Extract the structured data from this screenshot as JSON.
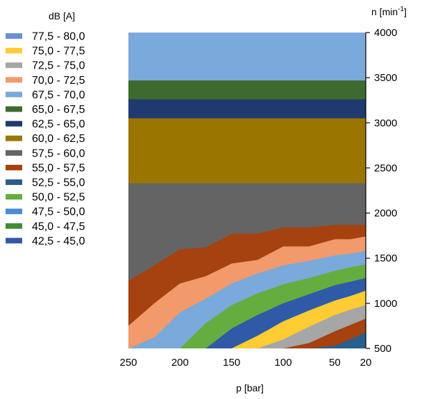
{
  "chart_data": {
    "type": "area",
    "legend_title": "dB [A]",
    "xlabel": "p [bar]",
    "ylabel": "n [min",
    "ylabel_sup": "-1",
    "ylabel_close": "]",
    "x_ticks": [
      "250",
      "200",
      "150",
      "100",
      "50",
      "20"
    ],
    "y_ticks": [
      "4000",
      "3500",
      "3000",
      "2500",
      "2000",
      "1500",
      "1000",
      "500"
    ],
    "xlim": [
      250,
      20
    ],
    "ylim": [
      500,
      4000
    ],
    "y_axis_position": "right",
    "legend_position": "left",
    "grid": false,
    "legend": [
      {
        "label": "77,5 - 80,0",
        "color": "#6b8fd6"
      },
      {
        "label": "75,0 - 77,5",
        "color": "#ffcc33"
      },
      {
        "label": "72,5 - 75,0",
        "color": "#a6a6a6"
      },
      {
        "label": "70,0 - 72,5",
        "color": "#f29a6b"
      },
      {
        "label": "67,5 - 70,0",
        "color": "#7aa9dc"
      },
      {
        "label": "65,0 - 67,5",
        "color": "#3d6b2e"
      },
      {
        "label": "62,5 - 65,0",
        "color": "#1f3a70"
      },
      {
        "label": "60,0 - 62,5",
        "color": "#9a7500"
      },
      {
        "label": "57,5 - 60,0",
        "color": "#646464"
      },
      {
        "label": "55,0 - 57,5",
        "color": "#a5420f"
      },
      {
        "label": "52,5 - 55,0",
        "color": "#2a5e8c"
      },
      {
        "label": "50,0 - 52,5",
        "color": "#66ad3f"
      },
      {
        "label": "47,5 - 50,0",
        "color": "#4a8ad0"
      },
      {
        "label": "45,0 - 47,5",
        "color": "#3f8a38"
      },
      {
        "label": "42,5 - 45,0",
        "color": "#2f5aa8"
      }
    ],
    "x": [
      250,
      225,
      200,
      175,
      150,
      125,
      100,
      75,
      50,
      35,
      20
    ],
    "series": [
      {
        "color": "#7aa9dc",
        "y": [
          4000,
          4000,
          4000,
          4000,
          4000,
          4000,
          4000,
          4000,
          4000,
          4000,
          4000
        ]
      },
      {
        "color": "#3d6b2e",
        "y": [
          3470,
          3470,
          3470,
          3470,
          3470,
          3470,
          3470,
          3470,
          3470,
          3470,
          3470
        ]
      },
      {
        "color": "#1f3a70",
        "y": [
          3260,
          3260,
          3260,
          3260,
          3260,
          3260,
          3260,
          3260,
          3260,
          3260,
          3260
        ]
      },
      {
        "color": "#9a7500",
        "y": [
          3050,
          3050,
          3050,
          3050,
          3050,
          3050,
          3050,
          3050,
          3050,
          3050,
          3050
        ]
      },
      {
        "color": "#646464",
        "y": [
          2330,
          2330,
          2330,
          2330,
          2330,
          2330,
          2330,
          2330,
          2330,
          2330,
          2330
        ]
      },
      {
        "color": "#a5420f",
        "y": [
          1250,
          1420,
          1600,
          1620,
          1770,
          1770,
          1840,
          1840,
          1870,
          1870,
          1870
        ]
      },
      {
        "color": "#f29a6b",
        "y": [
          750,
          1000,
          1220,
          1300,
          1440,
          1480,
          1630,
          1630,
          1710,
          1710,
          1740
        ]
      },
      {
        "color": "#7aa9dc",
        "y": [
          500,
          620,
          900,
          1050,
          1220,
          1330,
          1420,
          1470,
          1530,
          1550,
          1580
        ]
      },
      {
        "color": "#66ad3f",
        "y": [
          500,
          500,
          500,
          780,
          980,
          1110,
          1210,
          1280,
          1360,
          1400,
          1430
        ]
      },
      {
        "color": "#2f5aa8",
        "y": [
          500,
          500,
          500,
          500,
          720,
          870,
          1000,
          1100,
          1200,
          1240,
          1280
        ]
      },
      {
        "color": "#ffcc33",
        "y": [
          500,
          500,
          500,
          500,
          500,
          640,
          800,
          920,
          1030,
          1080,
          1140
        ]
      },
      {
        "color": "#a6a6a6",
        "y": [
          500,
          500,
          500,
          500,
          500,
          500,
          600,
          740,
          870,
          930,
          980
        ]
      },
      {
        "color": "#a5420f",
        "y": [
          500,
          500,
          500,
          500,
          500,
          500,
          500,
          560,
          690,
          760,
          830
        ]
      },
      {
        "color": "#2a5e8c",
        "y": [
          500,
          500,
          500,
          500,
          500,
          500,
          500,
          500,
          530,
          600,
          680
        ]
      }
    ]
  }
}
